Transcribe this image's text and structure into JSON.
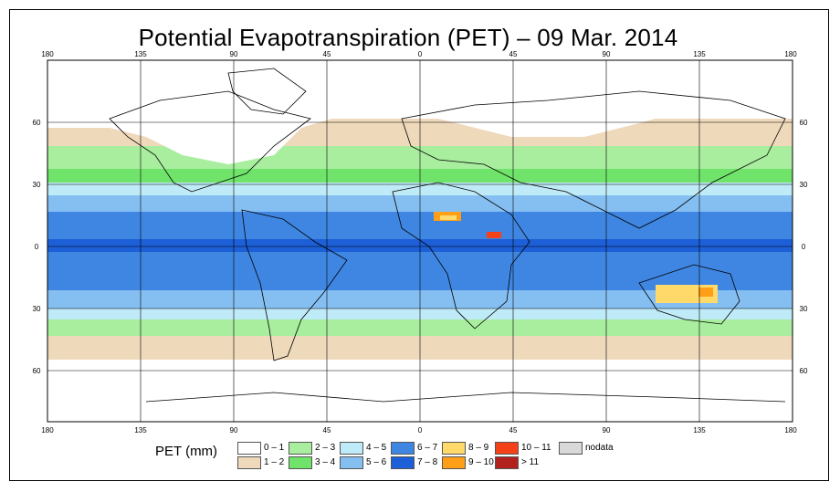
{
  "title": "Potential Evapotranspiration (PET) – 09 Mar. 2014",
  "map": {
    "lon_ticks": [
      "180",
      "135",
      "90",
      "45",
      "0",
      "45",
      "90",
      "135",
      "180"
    ],
    "lat_ticks_left": [
      "60",
      "30",
      "0",
      "30",
      "60"
    ],
    "lat_ticks_right": [
      "60",
      "30",
      "0",
      "30",
      "60"
    ]
  },
  "legend": {
    "title": "PET (mm)",
    "classes": [
      {
        "label": "0 – 1",
        "color": "#ffffff"
      },
      {
        "label": "1 – 2",
        "color": "#eed9bb"
      },
      {
        "label": "2 – 3",
        "color": "#a8ee9e"
      },
      {
        "label": "3 – 4",
        "color": "#6fe36a"
      },
      {
        "label": "4 – 5",
        "color": "#bfeaf7"
      },
      {
        "label": "5 – 6",
        "color": "#85bff2"
      },
      {
        "label": "6 – 7",
        "color": "#3f86e2"
      },
      {
        "label": "7 – 8",
        "color": "#1d5fd6"
      },
      {
        "label": "8 – 9",
        "color": "#ffd96a"
      },
      {
        "label": "9 – 10",
        "color": "#ff9e17"
      },
      {
        "label": "10 – 11",
        "color": "#f5411a"
      },
      {
        "label": "> 11",
        "color": "#b3211e"
      },
      {
        "label": "nodata",
        "color": "#d9d9d9"
      }
    ]
  }
}
